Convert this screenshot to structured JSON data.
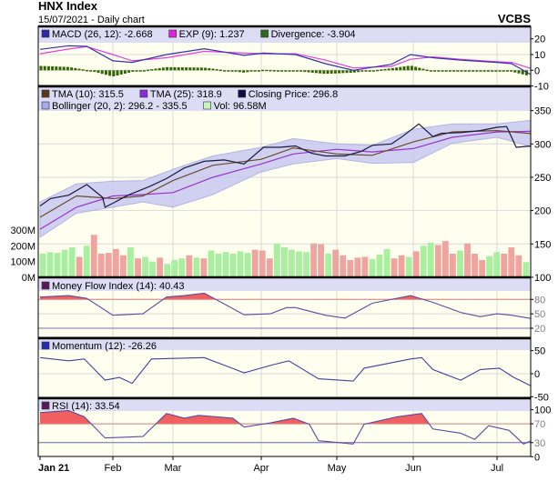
{
  "header": {
    "title": "HNX Index",
    "subtitle": "15/07/2021 - Daily chart",
    "brand": "VCBS"
  },
  "colors": {
    "plot_bg": "#fffff0",
    "legend_bg": "#dcdcf4",
    "grid": "#d8d8d8",
    "macd": "#3333aa",
    "exp": "#e040e0",
    "divergence": "#336600",
    "tma10": "#6b4a2a",
    "tma25": "#9933cc",
    "close": "#1a1a40",
    "bollinger_fill": "#c8c8f2",
    "bollinger_line": "#a8a8e0",
    "vol_up": "#a8f0a0",
    "vol_down": "#f0a4a0",
    "mfi": "#5a4aa0",
    "momentum": "#4040a0",
    "rsi": "#5a4aa0",
    "overbought_fill": "#f06060",
    "threshold_line": "#e08080"
  },
  "legends": {
    "macd": [
      {
        "label": "MACD (26, 12): -2.668",
        "color": "#2a2aa8"
      },
      {
        "label": "EXP (9): 1.237",
        "color": "#e020e0"
      },
      {
        "label": "Divergence: -3.904",
        "color": "#2f6a1a"
      }
    ],
    "price_row1": [
      {
        "label": "TMA (10): 315.5",
        "color": "#5a3a1e"
      },
      {
        "label": "TMA (25): 318.9",
        "color": "#8a2ad8"
      },
      {
        "label": "Closing Price: 296.8",
        "color": "#101040"
      }
    ],
    "price_row2": [
      {
        "label": "Bollinger (20, 2): 296.2 - 335.5",
        "color": "#a8a8e8"
      },
      {
        "label": "Vol: 96.58M",
        "color": "#c8f4c0"
      }
    ],
    "mfi": [
      {
        "label": "Money Flow Index (14): 40.43",
        "color": "#5a1a5a"
      }
    ],
    "momentum": [
      {
        "label": "Momentum (12): -26.26",
        "color": "#2a2ab0"
      }
    ],
    "rsi": [
      {
        "label": "RSI (14): 33.54",
        "color": "#5a1a5a"
      }
    ]
  },
  "chart_data": {
    "type": "line",
    "x_axis": {
      "type": "date",
      "range": [
        "2021-01-04",
        "2021-07-15"
      ],
      "ticks": [
        {
          "date": "2021-01-04",
          "label": "Jan 21"
        },
        {
          "date": "2021-02-01",
          "label": "Feb"
        },
        {
          "date": "2021-03-01",
          "label": "Mar"
        },
        {
          "date": "2021-04-01",
          "label": "Apr"
        },
        {
          "date": "2021-05-04",
          "label": "May"
        },
        {
          "date": "2021-06-01",
          "label": "Jun"
        },
        {
          "date": "2021-07-01",
          "label": "Jul"
        }
      ]
    },
    "panels": {
      "macd": {
        "ylim": [
          -10,
          20
        ],
        "ticks": [
          "20",
          "10",
          "0",
          "-10"
        ],
        "dates": [
          "2021-01-04",
          "2021-01-15",
          "2021-01-22",
          "2021-02-01",
          "2021-02-10",
          "2021-02-26",
          "2021-03-12",
          "2021-03-26",
          "2021-04-02",
          "2021-04-16",
          "2021-04-29",
          "2021-05-10",
          "2021-05-24",
          "2021-05-31",
          "2021-06-08",
          "2021-06-18",
          "2021-07-01",
          "2021-07-07",
          "2021-07-15"
        ],
        "macd": [
          13.3,
          15.6,
          15.2,
          6,
          5,
          10,
          13.7,
          9.5,
          10.9,
          10,
          4.2,
          0,
          3.8,
          10,
          8,
          6.5,
          5,
          4.2,
          -2.668
        ],
        "exp": [
          10.5,
          13.5,
          15,
          10,
          6,
          8,
          12,
          11,
          10.5,
          10.5,
          6.5,
          1.5,
          2.5,
          7,
          8.5,
          7,
          5.5,
          5,
          1.237
        ],
        "divergence": [
          2.8,
          2.1,
          0.2,
          -4,
          -1,
          2,
          1.7,
          -1.5,
          0.4,
          -0.5,
          -2.3,
          -1.5,
          1.3,
          3,
          -0.5,
          -0.5,
          -0.5,
          -0.8,
          -3.904
        ]
      },
      "price": {
        "ylim": [
          100,
          350
        ],
        "ticks": [
          "350",
          "300",
          "250",
          "200",
          "150",
          "100"
        ],
        "close": {
          "dates": [
            "2021-01-04",
            "2021-01-08",
            "2021-01-15",
            "2021-01-22",
            "2021-01-28",
            "2021-01-29",
            "2021-02-01",
            "2021-02-08",
            "2021-02-18",
            "2021-02-26",
            "2021-03-05",
            "2021-03-12",
            "2021-03-19",
            "2021-03-26",
            "2021-04-02",
            "2021-04-09",
            "2021-04-16",
            "2021-04-23",
            "2021-04-29",
            "2021-05-07",
            "2021-05-13",
            "2021-05-17",
            "2021-05-24",
            "2021-05-28",
            "2021-06-03",
            "2021-06-08",
            "2021-06-11",
            "2021-06-18",
            "2021-06-25",
            "2021-07-01",
            "2021-07-05",
            "2021-07-09",
            "2021-07-15"
          ],
          "values": [
            207,
            218,
            223,
            239,
            220,
            205,
            211,
            223,
            236,
            248,
            264,
            274,
            276,
            270,
            295,
            295,
            297,
            286,
            282,
            282,
            289,
            298,
            300,
            311,
            330,
            311,
            316,
            317,
            320,
            325,
            326,
            295,
            296.8
          ]
        },
        "smooth_dates": [
          "2021-01-04",
          "2021-01-18",
          "2021-02-01",
          "2021-02-15",
          "2021-03-01",
          "2021-03-15",
          "2021-04-01",
          "2021-04-15",
          "2021-05-04",
          "2021-05-17",
          "2021-06-01",
          "2021-06-15",
          "2021-07-01",
          "2021-07-15"
        ],
        "tma10": [
          190,
          222,
          218,
          222,
          245,
          268,
          277,
          294,
          285,
          283,
          303,
          318,
          320,
          315.5
        ],
        "tma25": [
          172,
          205,
          222,
          224,
          227,
          250,
          270,
          285,
          292,
          288,
          293,
          310,
          318,
          318.9
        ],
        "bollinger_upper": [
          213,
          240,
          244,
          245,
          262,
          282,
          295,
          308,
          300,
          298,
          322,
          330,
          330,
          335.5
        ],
        "bollinger_lower": [
          160,
          196,
          205,
          213,
          205,
          224,
          258,
          270,
          278,
          271,
          272,
          301,
          310,
          296.2
        ]
      },
      "volume": {
        "unit": "M",
        "ylim": [
          0,
          300
        ],
        "ticks": [
          "300M",
          "200M",
          "100M",
          "0M"
        ],
        "values": [
          150,
          160,
          155,
          175,
          190,
          130,
          200,
          270,
          150,
          155,
          180,
          140,
          190,
          120,
          130,
          100,
          125,
          85,
          110,
          120,
          140,
          125,
          120,
          170,
          150,
          160,
          150,
          165,
          155,
          175,
          170,
          120,
          215,
          190,
          175,
          165,
          160,
          215,
          210,
          150,
          175,
          140,
          110,
          125,
          130,
          115,
          145,
          180,
          120,
          140,
          130,
          165,
          200,
          220,
          205,
          230,
          150,
          170,
          215,
          150,
          110,
          135,
          160,
          150,
          190,
          140,
          96.58
        ],
        "up": [
          1,
          1,
          1,
          1,
          1,
          0,
          1,
          0,
          0,
          0,
          0,
          0,
          1,
          0,
          1,
          1,
          0,
          1,
          1,
          1,
          0,
          1,
          0,
          1,
          1,
          1,
          1,
          1,
          1,
          0,
          0,
          0,
          1,
          1,
          1,
          1,
          1,
          0,
          0,
          1,
          0,
          0,
          0,
          0,
          0,
          1,
          1,
          1,
          0,
          0,
          1,
          0,
          1,
          1,
          0,
          0,
          0,
          1,
          0,
          0,
          0,
          1,
          1,
          0,
          0,
          0,
          1
        ]
      },
      "mfi": {
        "ylim": [
          0,
          100
        ],
        "ticks": [
          "80",
          "50",
          "20"
        ],
        "overbought": 80,
        "oversold": 20,
        "dates": [
          "2021-01-04",
          "2021-01-15",
          "2021-01-22",
          "2021-02-01",
          "2021-02-15",
          "2021-02-26",
          "2021-03-05",
          "2021-03-12",
          "2021-03-26",
          "2021-04-05",
          "2021-04-12",
          "2021-04-16",
          "2021-04-29",
          "2021-05-07",
          "2021-05-17",
          "2021-05-31",
          "2021-06-08",
          "2021-06-18",
          "2021-06-25",
          "2021-07-01",
          "2021-07-07",
          "2021-07-15"
        ],
        "values": [
          85,
          88,
          82,
          47,
          50,
          85,
          88,
          93,
          48,
          50,
          63,
          63,
          47,
          41,
          72,
          88,
          74,
          53,
          44,
          50,
          47,
          40.43
        ]
      },
      "momentum": {
        "ylim": [
          -50,
          50
        ],
        "ticks": [
          "50",
          "0",
          "-50"
        ],
        "dates": [
          "2021-01-04",
          "2021-01-15",
          "2021-01-21",
          "2021-01-29",
          "2021-02-04",
          "2021-02-10",
          "2021-02-19",
          "2021-03-12",
          "2021-03-26",
          "2021-04-05",
          "2021-04-13",
          "2021-04-26",
          "2021-05-10",
          "2021-05-14",
          "2021-05-31",
          "2021-06-04",
          "2021-06-08",
          "2021-06-18",
          "2021-06-25",
          "2021-07-02",
          "2021-07-08",
          "2021-07-15"
        ],
        "values": [
          35,
          28,
          32,
          -14,
          -8,
          -21,
          32,
          35,
          2,
          18,
          28,
          -11,
          -16,
          12,
          32,
          35,
          9,
          -14,
          9,
          12,
          -8,
          -26.26
        ]
      },
      "rsi": {
        "ylim": [
          0,
          100
        ],
        "ticks": [
          "100",
          "70",
          "30",
          "0"
        ],
        "overbought": 70,
        "oversold": 30,
        "dates": [
          "2021-01-04",
          "2021-01-15",
          "2021-01-21",
          "2021-01-29",
          "2021-02-15",
          "2021-02-26",
          "2021-03-05",
          "2021-03-10",
          "2021-03-22",
          "2021-03-26",
          "2021-04-05",
          "2021-04-15",
          "2021-04-22",
          "2021-04-26",
          "2021-05-10",
          "2021-05-14",
          "2021-05-26",
          "2021-06-04",
          "2021-06-08",
          "2021-06-18",
          "2021-06-23",
          "2021-06-28",
          "2021-07-06",
          "2021-07-12",
          "2021-07-15"
        ],
        "values": [
          94,
          98,
          85,
          40,
          43,
          92,
          82,
          88,
          82,
          63,
          72,
          82,
          69,
          34,
          27,
          69,
          85,
          92,
          59,
          50,
          37,
          66,
          56,
          27,
          33.54
        ]
      }
    }
  }
}
